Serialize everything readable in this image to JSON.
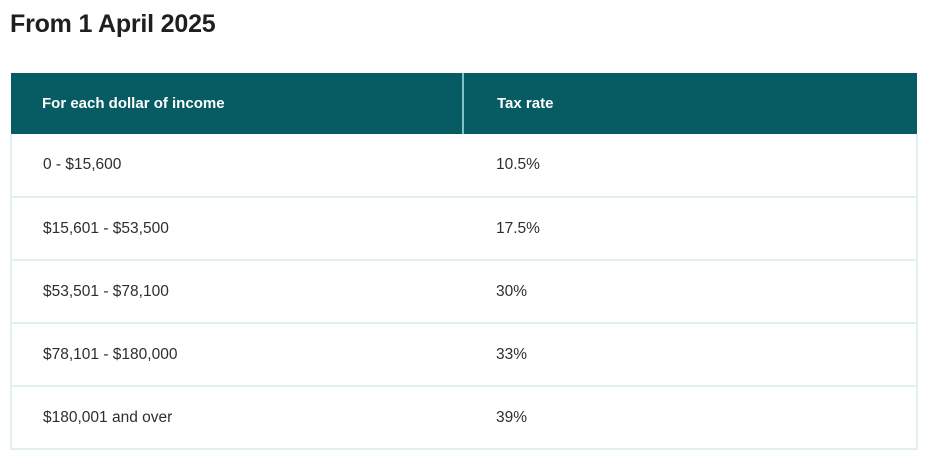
{
  "heading": "From 1 April 2025",
  "table": {
    "headers": {
      "income": "For each dollar of income",
      "rate": "Tax rate"
    },
    "rows": [
      {
        "income": "0 - $15,600",
        "rate": "10.5%"
      },
      {
        "income": "$15,601 - $53,500",
        "rate": "17.5%"
      },
      {
        "income": "$53,501 - $78,100",
        "rate": "30%"
      },
      {
        "income": "$78,101 - $180,000",
        "rate": "33%"
      },
      {
        "income": "$180,001 and over",
        "rate": "39%"
      }
    ]
  },
  "colors": {
    "header_bg": "#075b63",
    "header_text": "#ffffff",
    "border": "#e3eff1"
  }
}
